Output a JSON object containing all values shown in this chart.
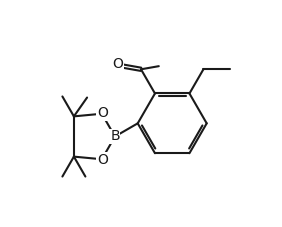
{
  "background_color": "#ffffff",
  "line_color": "#1a1a1a",
  "line_width": 1.5,
  "font_size": 9.5,
  "figsize": [
    2.82,
    2.27
  ],
  "dpi": 100,
  "xlim": [
    0.0,
    8.5
  ],
  "ylim": [
    0.5,
    6.5
  ]
}
